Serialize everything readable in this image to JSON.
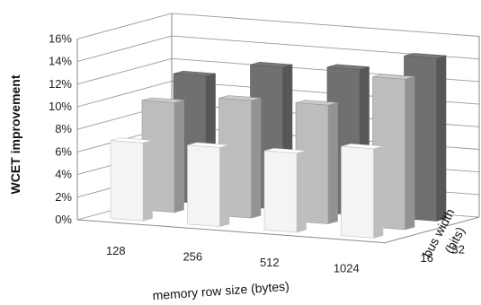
{
  "chart_data": {
    "type": "bar3d",
    "ylabel": "WCET improvement",
    "xlabel": "memory row size (bytes)",
    "zlabel_line1": "bus width",
    "zlabel_line2": "(bits)",
    "y_ticks": [
      "0%",
      "2%",
      "4%",
      "6%",
      "8%",
      "10%",
      "12%",
      "14%",
      "16%"
    ],
    "ylim": [
      0,
      16
    ],
    "categories": [
      "128",
      "256",
      "512",
      "1024"
    ],
    "series": [
      {
        "name": "16",
        "color": "#f4f4f4",
        "values": [
          6.9,
          7.0,
          7.0,
          7.9
        ]
      },
      {
        "name": "32",
        "color": "#bdbdbd",
        "values": [
          9.7,
          10.4,
          10.5,
          13.3
        ]
      },
      {
        "name": "64",
        "color": "#707070",
        "values": [
          11.3,
          12.6,
          12.9,
          14.4
        ]
      }
    ],
    "grid": true
  }
}
